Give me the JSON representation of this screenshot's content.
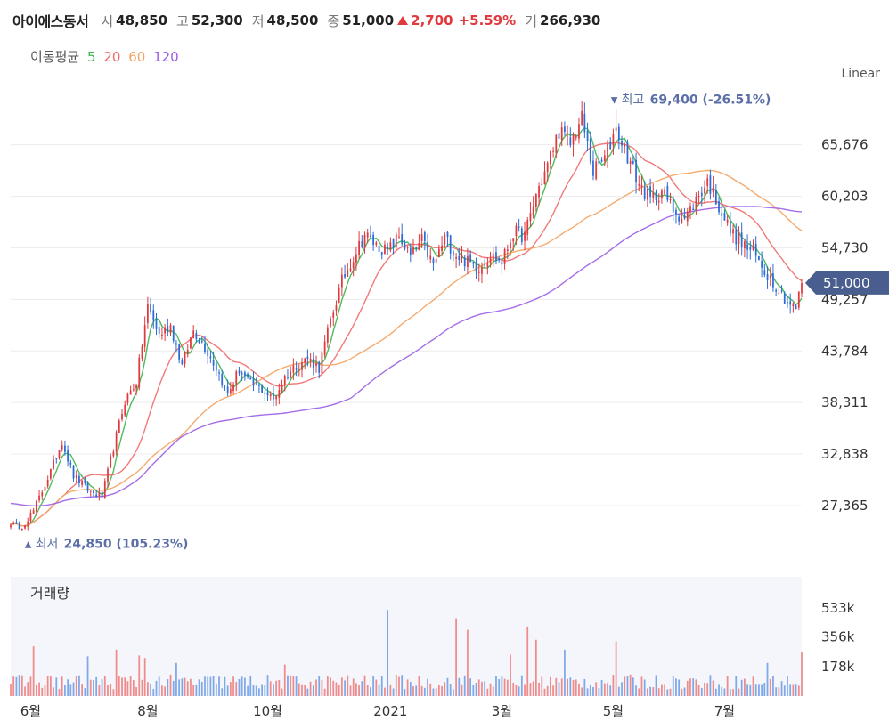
{
  "header": {
    "name": "아이에스동서",
    "open_label": "시",
    "open": "48,850",
    "high_label": "고",
    "high": "52,300",
    "low_label": "저",
    "low": "48,500",
    "close_label": "종",
    "close": "51,000",
    "change": "2,700",
    "change_pct": "+5.59%",
    "volume_label": "거",
    "volume": "266,930"
  },
  "ma_legend": {
    "label": "이동평균",
    "periods": [
      {
        "text": "5",
        "color": "#3cb44b"
      },
      {
        "text": "20",
        "color": "#f06a6a"
      },
      {
        "text": "60",
        "color": "#f4a261"
      },
      {
        "text": "120",
        "color": "#9b5de5"
      }
    ]
  },
  "scale_label": "Linear",
  "colors": {
    "up": "#e0393e",
    "down": "#2b6cd6",
    "up_vol": "#f08b8b",
    "down_vol": "#7fa8e8",
    "badge": "#4a5d8f",
    "marker": "#5b6fa6"
  },
  "chart_data": {
    "type": "candlestick",
    "price_axis": {
      "ticks": [
        27365,
        32838,
        38311,
        43784,
        49257,
        54730,
        60203,
        65676
      ],
      "min": 21500,
      "max": 71600
    },
    "volume_axis": {
      "label": "거래량",
      "ticks": [
        "178k",
        "356k",
        "533k"
      ],
      "tick_values": [
        178000,
        356000,
        533000
      ],
      "max": 720000
    },
    "x_axis": {
      "labels": [
        "6월",
        "8월",
        "10월",
        "2021",
        "3월",
        "5월",
        "7월"
      ],
      "label_index": [
        7,
        48,
        90,
        133,
        172,
        211,
        250
      ]
    },
    "last_price": {
      "label": "51,000",
      "value": 51000
    },
    "high_marker": {
      "prefix": "최고",
      "value_text": "69,400 (-26.51%)",
      "value": 69400,
      "index": 212
    },
    "low_marker": {
      "prefix": "최저",
      "value_text": "24,850 (105.23%)",
      "value": 24850,
      "index": 3
    },
    "price_path": [
      [
        0,
        25600
      ],
      [
        3,
        24850
      ],
      [
        8,
        26800
      ],
      [
        14,
        31000
      ],
      [
        18,
        34200
      ],
      [
        22,
        30500
      ],
      [
        28,
        28800
      ],
      [
        32,
        28300
      ],
      [
        36,
        33500
      ],
      [
        40,
        38500
      ],
      [
        44,
        40500
      ],
      [
        48,
        48500
      ],
      [
        52,
        45500
      ],
      [
        56,
        46500
      ],
      [
        60,
        42200
      ],
      [
        64,
        46000
      ],
      [
        68,
        44200
      ],
      [
        72,
        42000
      ],
      [
        76,
        39200
      ],
      [
        80,
        41800
      ],
      [
        84,
        40200
      ],
      [
        88,
        39700
      ],
      [
        92,
        38600
      ],
      [
        96,
        41000
      ],
      [
        100,
        42300
      ],
      [
        104,
        43000
      ],
      [
        108,
        42000
      ],
      [
        112,
        47000
      ],
      [
        116,
        51200
      ],
      [
        120,
        53800
      ],
      [
        124,
        56200
      ],
      [
        128,
        55000
      ],
      [
        132,
        54300
      ],
      [
        136,
        56000
      ],
      [
        140,
        53800
      ],
      [
        144,
        55500
      ],
      [
        148,
        52800
      ],
      [
        152,
        55800
      ],
      [
        156,
        54000
      ],
      [
        160,
        53200
      ],
      [
        164,
        52700
      ],
      [
        168,
        54000
      ],
      [
        172,
        53200
      ],
      [
        176,
        56400
      ],
      [
        180,
        56000
      ],
      [
        184,
        60400
      ],
      [
        188,
        63500
      ],
      [
        192,
        67200
      ],
      [
        196,
        65800
      ],
      [
        200,
        68500
      ],
      [
        204,
        62800
      ],
      [
        208,
        64200
      ],
      [
        212,
        67500
      ],
      [
        216,
        64500
      ],
      [
        220,
        61500
      ],
      [
        224,
        59800
      ],
      [
        228,
        60800
      ],
      [
        232,
        58800
      ],
      [
        236,
        57800
      ],
      [
        240,
        59800
      ],
      [
        244,
        61800
      ],
      [
        248,
        59200
      ],
      [
        252,
        56500
      ],
      [
        256,
        55200
      ],
      [
        260,
        54200
      ],
      [
        264,
        52300
      ],
      [
        268,
        50800
      ],
      [
        272,
        49000
      ],
      [
        275,
        48300
      ],
      [
        277,
        51000
      ]
    ],
    "ma_periods": [
      5,
      20,
      60,
      120
    ],
    "ma120_start": 27600
  }
}
